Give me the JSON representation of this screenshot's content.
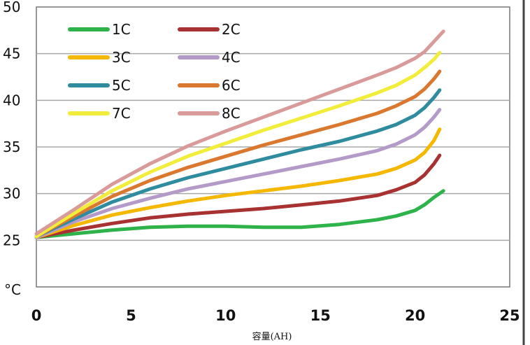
{
  "chart_data": {
    "type": "line",
    "xlabel": "容量(AH)",
    "ylabel": "",
    "y_unit_label": "°C",
    "xlim": [
      0,
      25
    ],
    "ylim": [
      20,
      50
    ],
    "x_ticks": [
      "0",
      "5",
      "10",
      "15",
      "20",
      "25"
    ],
    "y_ticks": [
      "25",
      "30",
      "35",
      "40",
      "45",
      "50"
    ],
    "grid": "horizontal",
    "legend_position": "top-left",
    "series": [
      {
        "name": "1C",
        "color": "#2db34a",
        "x": [
          0,
          2,
          4,
          6,
          8,
          10,
          12,
          14,
          16,
          18,
          19,
          20,
          20.5,
          21,
          21.5
        ],
        "y": [
          25.3,
          25.7,
          26.1,
          26.4,
          26.5,
          26.5,
          26.4,
          26.4,
          26.7,
          27.2,
          27.6,
          28.2,
          28.8,
          29.6,
          30.3
        ]
      },
      {
        "name": "2C",
        "color": "#a83232",
        "x": [
          0,
          2,
          4,
          6,
          8,
          10,
          12,
          14,
          16,
          18,
          19,
          20,
          20.5,
          21,
          21.3
        ],
        "y": [
          25.3,
          26.1,
          26.8,
          27.4,
          27.8,
          28.1,
          28.4,
          28.8,
          29.2,
          29.8,
          30.4,
          31.2,
          32.0,
          33.2,
          34.1
        ]
      },
      {
        "name": "3C",
        "color": "#f5b800",
        "x": [
          0,
          2,
          4,
          6,
          8,
          10,
          12,
          14,
          16,
          18,
          19,
          20,
          20.5,
          21,
          21.3
        ],
        "y": [
          25.3,
          26.6,
          27.7,
          28.5,
          29.2,
          29.8,
          30.3,
          30.8,
          31.4,
          32.1,
          32.7,
          33.6,
          34.4,
          35.7,
          36.9
        ]
      },
      {
        "name": "4C",
        "color": "#b49ac8",
        "x": [
          0,
          2,
          4,
          6,
          8,
          10,
          12,
          14,
          16,
          18,
          19,
          20,
          20.5,
          21,
          21.3
        ],
        "y": [
          25.3,
          27.0,
          28.4,
          29.5,
          30.5,
          31.3,
          32.1,
          32.9,
          33.7,
          34.6,
          35.3,
          36.3,
          37.1,
          38.2,
          39.0
        ]
      },
      {
        "name": "5C",
        "color": "#2f8c9e",
        "x": [
          0,
          2,
          4,
          6,
          8,
          10,
          12,
          14,
          16,
          18,
          19,
          20,
          20.5,
          21,
          21.3
        ],
        "y": [
          25.4,
          27.3,
          29.1,
          30.5,
          31.7,
          32.7,
          33.7,
          34.7,
          35.6,
          36.7,
          37.4,
          38.4,
          39.2,
          40.3,
          41.1
        ]
      },
      {
        "name": "6C",
        "color": "#d9782e",
        "x": [
          0,
          2,
          4,
          6,
          8,
          10,
          12,
          14,
          16,
          18,
          19,
          20,
          20.5,
          21,
          21.3
        ],
        "y": [
          25.4,
          27.6,
          29.7,
          31.4,
          32.8,
          34.0,
          35.2,
          36.3,
          37.4,
          38.6,
          39.4,
          40.4,
          41.2,
          42.3,
          43.1
        ]
      },
      {
        "name": "7C",
        "color": "#f2ec3a",
        "x": [
          0,
          2,
          4,
          6,
          8,
          10,
          12,
          14,
          16,
          18,
          19,
          20,
          20.5,
          21,
          21.3
        ],
        "y": [
          25.4,
          27.9,
          30.3,
          32.3,
          34.0,
          35.4,
          36.8,
          38.1,
          39.4,
          40.8,
          41.6,
          42.7,
          43.5,
          44.4,
          45.1
        ]
      },
      {
        "name": "8C",
        "color": "#d99a9a",
        "x": [
          0,
          2,
          4,
          6,
          8,
          10,
          12,
          14,
          16,
          18,
          19,
          20,
          20.5,
          21,
          21.5
        ],
        "y": [
          25.7,
          28.3,
          31.0,
          33.2,
          35.1,
          36.7,
          38.2,
          39.7,
          41.2,
          42.7,
          43.5,
          44.5,
          45.2,
          46.3,
          47.4
        ]
      }
    ]
  }
}
